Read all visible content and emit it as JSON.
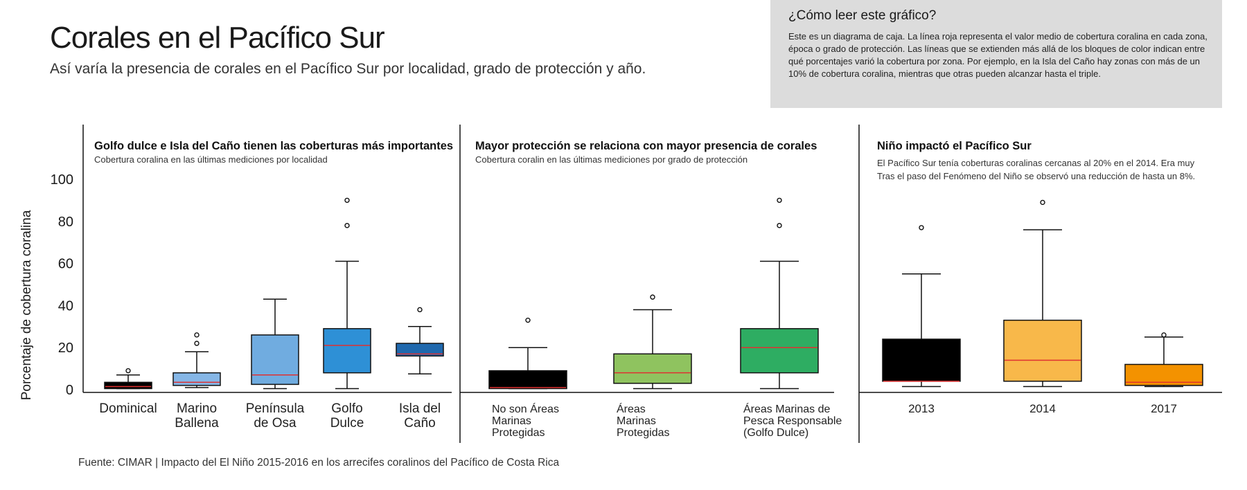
{
  "title": "Corales en el Pacífico Sur",
  "subtitle": "Así varía la presencia de corales en el Pacífico Sur por localidad, grado de protección y año.",
  "help": {
    "title": "¿Cómo leer este gráfico?",
    "text": "Este es un diagrama de caja. La línea roja representa el valor medio de cobertura coralina en cada zona, época o grado de protección. Las líneas que se extienden más allá de los bloques de color indican entre qué porcentajes varió la cobertura por zona. Por ejemplo, en la Isla del Caño hay zonas con más de un 10% de cobertura coralina, mientras que otras pueden alcanzar hasta el triple."
  },
  "source": "Fuente: CIMAR | Impacto del El Niño 2015-2016 en los arrecifes coralinos del Pacífico de Costa Rica",
  "colors": {
    "median": "#e03030",
    "axis": "#111111"
  },
  "chart_data": [
    {
      "type": "boxplot",
      "title": "Golfo dulce e Isla del Caño tienen las coberturas más importantes",
      "subtitle": "Cobertura coralina en las últimas mediciones por localidad",
      "ylabel": "Porcentaje de cobertura coralina",
      "yticks": [
        0,
        20,
        40,
        60,
        80,
        100
      ],
      "ylim": [
        0,
        100
      ],
      "grid": false,
      "boxes": [
        {
          "label": [
            "Dominical"
          ],
          "color": "#000000",
          "whisker_low": 0.5,
          "q1": 0.5,
          "median": 1.5,
          "q3": 3.5,
          "whisker_high": 7,
          "outliers": [
            9
          ]
        },
        {
          "label": [
            "Marino",
            "Ballena"
          ],
          "color": "#85b6e6",
          "whisker_low": 1,
          "q1": 2,
          "median": 3.5,
          "q3": 8,
          "whisker_high": 18,
          "outliers": [
            22,
            26
          ]
        },
        {
          "label": [
            "Península",
            "de Osa"
          ],
          "color": "#70ace0",
          "whisker_low": 0.5,
          "q1": 2.5,
          "median": 7,
          "q3": 26,
          "whisker_high": 43,
          "outliers": []
        },
        {
          "label": [
            "Golfo",
            "Dulce"
          ],
          "color": "#2e90d6",
          "whisker_low": 0.5,
          "q1": 8,
          "median": 21,
          "q3": 29,
          "whisker_high": 61,
          "outliers": [
            78,
            90
          ]
        },
        {
          "label": [
            "Isla del",
            "Caño"
          ],
          "color": "#1f68ad",
          "whisker_low": 7.5,
          "q1": 16,
          "median": 17,
          "q3": 22,
          "whisker_high": 30,
          "outliers": [
            38
          ]
        }
      ]
    },
    {
      "type": "boxplot",
      "title": "Mayor protección se relaciona con mayor presencia de corales",
      "subtitle": "Cobertura coralin en las últimas mediciones por grado de protección",
      "ylim": [
        0,
        100
      ],
      "grid": false,
      "boxes": [
        {
          "label": [
            "No son Áreas",
            "Marinas",
            "Protegidas"
          ],
          "color": "#000000",
          "whisker_low": 0.5,
          "q1": 0.5,
          "median": 1,
          "q3": 9,
          "whisker_high": 20,
          "outliers": [
            33
          ]
        },
        {
          "label": [
            "Áreas",
            "Marinas",
            "Protegidas"
          ],
          "color": "#8fc35f",
          "whisker_low": 0.5,
          "q1": 3,
          "median": 8,
          "q3": 17,
          "whisker_high": 38,
          "outliers": [
            44
          ]
        },
        {
          "label": [
            "Áreas Marinas de",
            "Pesca Responsable",
            "(Golfo Dulce)"
          ],
          "color": "#2ead62",
          "whisker_low": 0.5,
          "q1": 8,
          "median": 20,
          "q3": 29,
          "whisker_high": 61,
          "outliers": [
            78,
            90
          ]
        }
      ]
    },
    {
      "type": "boxplot",
      "title": "Niño impactó el Pacífico Sur",
      "subtitle_lines": [
        "El Pacífico Sur tenía coberturas coralinas cercanas al 20% en el 2014. Era muy",
        "Tras el paso del Fenómeno del Niño se observó una reducción de hasta un 8%."
      ],
      "ylim": [
        0,
        100
      ],
      "grid": false,
      "boxes": [
        {
          "label": [
            "2013"
          ],
          "color": "#000000",
          "whisker_low": 1.5,
          "q1": 4,
          "median": 4,
          "q3": 24,
          "whisker_high": 55,
          "outliers": [
            77
          ]
        },
        {
          "label": [
            "2014"
          ],
          "color": "#f8b84a",
          "whisker_low": 1.5,
          "q1": 4,
          "median": 14,
          "q3": 33,
          "whisker_high": 76,
          "outliers": [
            89
          ]
        },
        {
          "label": [
            "2017"
          ],
          "color": "#f39200",
          "whisker_low": 1.5,
          "q1": 2,
          "median": 3.5,
          "q3": 12,
          "whisker_high": 25,
          "outliers": [
            26
          ]
        }
      ]
    }
  ]
}
